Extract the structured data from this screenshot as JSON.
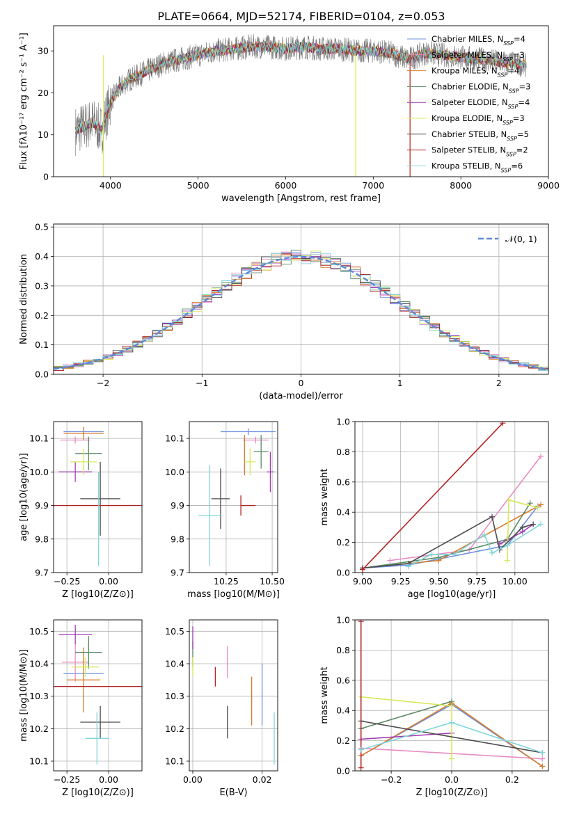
{
  "figure_title": "PLATE=0664, MJD=52174, FIBERID=0104, z=0.053",
  "colors": {
    "chabrier_miles": "#6b8fe0",
    "salpeter_miles": "#e88bc4",
    "kroupa_miles": "#d97b2a",
    "chabrier_elodie": "#5a8a64",
    "salpeter_elodie": "#a03cb4",
    "kroupa_elodie": "#d8e85a",
    "chabrier_stelib": "#4a4a4a",
    "salpeter_stelib": "#b22222",
    "kroupa_stelib": "#7fd6dc",
    "normal_curve": "#5b88d6"
  },
  "chart_data": [
    {
      "type": "line",
      "id": "spectrum",
      "title": "PLATE=0664, MJD=52174, FIBERID=0104, z=0.053",
      "xlabel": "wavelength [Angstrom, rest frame]",
      "ylabel": "Flux [fλ10⁻¹⁷ erg cm⁻² s⁻¹ A⁻¹]",
      "xlim": [
        3350,
        9000
      ],
      "ylim": [
        0,
        36
      ],
      "xticks": [
        4000,
        5000,
        6000,
        7000,
        8000,
        9000
      ],
      "yticks": [
        0,
        10,
        20,
        30
      ],
      "grid": false,
      "legend_position": "top-right",
      "data_continuum": {
        "x": [
          3600,
          3700,
          3800,
          3900,
          4000,
          4100,
          4200,
          4300,
          4400,
          4500,
          4600,
          4700,
          4800,
          4900,
          5000,
          5200,
          5400,
          5600,
          5800,
          6000,
          6200,
          6400,
          6600,
          6800,
          7000,
          7200,
          7400,
          7600,
          7800,
          8000,
          8200,
          8400,
          8600,
          8750
        ],
        "y": [
          11,
          12,
          13,
          11,
          18,
          21,
          23,
          24,
          25,
          26,
          27,
          27.5,
          28,
          28.5,
          29,
          30,
          30.5,
          31,
          31,
          30.5,
          31,
          30.5,
          30.5,
          30,
          30,
          29.5,
          28,
          29.5,
          29,
          28.5,
          28,
          27.5,
          27,
          26.5
        ]
      },
      "series": [
        {
          "name": "Chabrier MILES, N_SSP=4",
          "color_key": "chabrier_miles"
        },
        {
          "name": "Salpeter MILES, N_SSP=3",
          "color_key": "salpeter_miles"
        },
        {
          "name": "Kroupa MILES, N_SSP=4",
          "color_key": "kroupa_miles"
        },
        {
          "name": "Chabrier ELODIE, N_SSP=3",
          "color_key": "chabrier_elodie"
        },
        {
          "name": "Salpeter ELODIE, N_SSP=4",
          "color_key": "salpeter_elodie"
        },
        {
          "name": "Kroupa ELODIE, N_SSP=3",
          "color_key": "kroupa_elodie"
        },
        {
          "name": "Chabrier STELIB, N_SSP=5",
          "color_key": "chabrier_stelib"
        },
        {
          "name": "Salpeter STELIB, N_SSP=2",
          "color_key": "salpeter_stelib"
        },
        {
          "name": "Kroupa STELIB, N_SSP=6",
          "color_key": "kroupa_stelib"
        }
      ]
    },
    {
      "type": "area",
      "id": "residuals",
      "xlabel": "(data-model)/error",
      "ylabel": "Normed distribution",
      "xlim": [
        -2.5,
        2.5
      ],
      "ylim": [
        0,
        0.51
      ],
      "xticks": [
        -2,
        -1,
        0,
        1,
        2
      ],
      "yticks": [
        0.0,
        0.1,
        0.2,
        0.3,
        0.4,
        0.5
      ],
      "grid": true,
      "legend_position": "top-right",
      "normal_label": "𝒩(0, 1)"
    },
    {
      "type": "scatter",
      "id": "age_vs_Z",
      "xlabel": "Z [log10(Z/Z⊙)]",
      "ylabel": "age  [log10(age/yr)]",
      "xlim": [
        -0.33,
        0.2
      ],
      "ylim": [
        9.7,
        10.15
      ],
      "xticks": [
        -0.25,
        0.0
      ],
      "yticks": [
        9.7,
        9.8,
        9.9,
        10.0,
        10.1
      ],
      "grid": true,
      "points": [
        {
          "color_key": "chabrier_miles",
          "x": -0.15,
          "y": 10.12,
          "xerr": 0.12,
          "yerr": 0.01
        },
        {
          "color_key": "salpeter_miles",
          "x": -0.2,
          "y": 10.095,
          "xerr": 0.09,
          "yerr": 0.01
        },
        {
          "color_key": "kroupa_miles",
          "x": -0.15,
          "y": 10.115,
          "xerr": 0.12,
          "yerr": 0.02
        },
        {
          "color_key": "chabrier_elodie",
          "x": -0.12,
          "y": 10.055,
          "xerr": 0.08,
          "yerr": 0.05
        },
        {
          "color_key": "salpeter_elodie",
          "x": -0.2,
          "y": 10.0,
          "xerr": 0.1,
          "yerr": 0.03
        },
        {
          "color_key": "kroupa_elodie",
          "x": -0.15,
          "y": 10.03,
          "xerr": 0.08,
          "yerr": 0.04
        },
        {
          "color_key": "chabrier_stelib",
          "x": -0.05,
          "y": 9.92,
          "xerr": 0.12,
          "yerr": 0.11
        },
        {
          "color_key": "salpeter_stelib",
          "x": -0.1,
          "y": 9.9,
          "xerr": 0.3,
          "yerr": 0.0
        },
        {
          "color_key": "kroupa_stelib",
          "x": -0.06,
          "y": 9.86,
          "xerr": 0.0,
          "yerr": 0.14
        }
      ]
    },
    {
      "type": "scatter",
      "id": "age_vs_mass",
      "xlabel": "mass [log10(M/M⊙)]",
      "xlim": [
        10.05,
        10.53
      ],
      "ylim": [
        9.7,
        10.15
      ],
      "xticks": [
        10.25,
        10.5
      ],
      "yticks": [
        9.7,
        9.8,
        9.9,
        10.0,
        10.1
      ],
      "grid": true,
      "points": [
        {
          "color_key": "chabrier_miles",
          "x": 10.37,
          "y": 10.12,
          "xerr": 0.15,
          "yerr": 0.01
        },
        {
          "color_key": "salpeter_miles",
          "x": 10.41,
          "y": 10.095,
          "xerr": 0.07,
          "yerr": 0.01
        },
        {
          "color_key": "kroupa_miles",
          "x": 10.35,
          "y": 10.05,
          "xerr": 0.0,
          "yerr": 0.06
        },
        {
          "color_key": "chabrier_elodie",
          "x": 10.44,
          "y": 10.06,
          "xerr": 0.04,
          "yerr": 0.05
        },
        {
          "color_key": "salpeter_elodie",
          "x": 10.49,
          "y": 10.0,
          "xerr": 0.02,
          "yerr": 0.06
        },
        {
          "color_key": "kroupa_elodie",
          "x": 10.38,
          "y": 10.03,
          "xerr": 0.03,
          "yerr": 0.04
        },
        {
          "color_key": "chabrier_stelib",
          "x": 10.22,
          "y": 9.92,
          "xerr": 0.05,
          "yerr": 0.09
        },
        {
          "color_key": "salpeter_stelib",
          "x": 10.33,
          "y": 9.9,
          "xerr": 0.0,
          "yerr": 0.03
        },
        {
          "color_key": "salpeter_stelib",
          "x": 10.37,
          "y": 9.9,
          "xerr": 0.04,
          "yerr": 0.0
        },
        {
          "color_key": "kroupa_stelib",
          "x": 10.16,
          "y": 9.87,
          "xerr": 0.06,
          "yerr": 0.15
        }
      ]
    },
    {
      "type": "line",
      "id": "massweight_vs_age",
      "xlabel": "age  [log10(age/yr)]",
      "ylabel": "mass weight",
      "xlim": [
        8.95,
        10.22
      ],
      "ylim": [
        0,
        1.0
      ],
      "xticks": [
        9.0,
        9.25,
        9.5,
        9.75,
        10.0
      ],
      "yticks": [
        0.0,
        0.2,
        0.4,
        0.6,
        0.8,
        1.0
      ],
      "grid": true,
      "series": [
        {
          "color_key": "chabrier_miles",
          "x": [
            9.0,
            9.3,
            9.95,
            10.15
          ],
          "y": [
            0.03,
            0.05,
            0.18,
            0.44
          ]
        },
        {
          "color_key": "salpeter_miles",
          "x": [
            9.18,
            9.7,
            10.17
          ],
          "y": [
            0.08,
            0.15,
            0.77
          ]
        },
        {
          "color_key": "kroupa_miles",
          "x": [
            9.0,
            9.5,
            10.17
          ],
          "y": [
            0.03,
            0.08,
            0.45
          ]
        },
        {
          "color_key": "chabrier_elodie",
          "x": [
            9.0,
            9.5,
            9.95,
            10.1
          ],
          "y": [
            0.03,
            0.1,
            0.22,
            0.46
          ]
        },
        {
          "color_key": "salpeter_elodie",
          "x": [
            9.9,
            10.05,
            10.12
          ],
          "y": [
            0.19,
            0.27,
            0.32
          ]
        },
        {
          "color_key": "kroupa_elodie",
          "x": [
            9.95,
            9.96,
            10.15
          ],
          "y": [
            0.08,
            0.48,
            0.43
          ]
        },
        {
          "color_key": "chabrier_stelib",
          "x": [
            9.0,
            9.3,
            9.85,
            9.9,
            10.05,
            10.12
          ],
          "y": [
            0.03,
            0.06,
            0.37,
            0.15,
            0.3,
            0.32
          ]
        },
        {
          "color_key": "salpeter_stelib",
          "x": [
            9.0,
            9.92
          ],
          "y": [
            0.02,
            0.99
          ]
        },
        {
          "color_key": "kroupa_stelib",
          "x": [
            9.3,
            9.45,
            9.6,
            9.8,
            9.85,
            9.95,
            10.17
          ],
          "y": [
            0.04,
            0.12,
            0.12,
            0.25,
            0.13,
            0.18,
            0.32
          ]
        }
      ]
    },
    {
      "type": "scatter",
      "id": "mass_vs_Z",
      "xlabel": "Z [log10(Z/Z⊙)]",
      "ylabel": "mass [log10(M/M⊙)]",
      "xlim": [
        -0.33,
        0.2
      ],
      "ylim": [
        10.07,
        10.535
      ],
      "xticks": [
        -0.25,
        0.0
      ],
      "yticks": [
        10.1,
        10.2,
        10.3,
        10.4,
        10.5
      ],
      "grid": true,
      "points": [
        {
          "color_key": "chabrier_miles",
          "x": -0.15,
          "y": 10.37,
          "xerr": 0.12,
          "yerr": 0.0
        },
        {
          "color_key": "salpeter_miles",
          "x": -0.2,
          "y": 10.405,
          "xerr": 0.08,
          "yerr": 0.06
        },
        {
          "color_key": "kroupa_miles",
          "x": -0.15,
          "y": 10.35,
          "xerr": 0.1,
          "yerr": 0.1
        },
        {
          "color_key": "chabrier_elodie",
          "x": -0.12,
          "y": 10.435,
          "xerr": 0.08,
          "yerr": 0.05
        },
        {
          "color_key": "salpeter_elodie",
          "x": -0.2,
          "y": 10.49,
          "xerr": 0.1,
          "yerr": 0.03
        },
        {
          "color_key": "kroupa_elodie",
          "x": -0.14,
          "y": 10.39,
          "xerr": 0.08,
          "yerr": 0.03
        },
        {
          "color_key": "chabrier_stelib",
          "x": -0.05,
          "y": 10.22,
          "xerr": 0.12,
          "yerr": 0.05
        },
        {
          "color_key": "salpeter_stelib",
          "x": -0.1,
          "y": 10.33,
          "xerr": 0.3,
          "yerr": 0.0
        },
        {
          "color_key": "kroupa_stelib",
          "x": -0.07,
          "y": 10.17,
          "xerr": 0.07,
          "yerr": 0.08
        }
      ]
    },
    {
      "type": "scatter",
      "id": "mass_vs_ebv",
      "xlabel": "E(B-V)",
      "xlim": [
        -0.001,
        0.0245
      ],
      "ylim": [
        10.07,
        10.535
      ],
      "xticks": [
        0.0,
        0.02
      ],
      "yticks": [
        10.1,
        10.2,
        10.3,
        10.4,
        10.5
      ],
      "grid": true,
      "points": [
        {
          "color_key": "chabrier_miles",
          "x": 0.02,
          "y": 10.305,
          "xerr": 0.0,
          "yerr": 0.095
        },
        {
          "color_key": "salpeter_miles",
          "x": 0.01,
          "y": 10.405,
          "xerr": 0.0,
          "yerr": 0.05
        },
        {
          "color_key": "kroupa_miles",
          "x": 0.017,
          "y": 10.285,
          "xerr": 0.0,
          "yerr": 0.075
        },
        {
          "color_key": "chabrier_elodie",
          "x": 0.0,
          "y": 10.43,
          "xerr": 0.0,
          "yerr": 0.04
        },
        {
          "color_key": "salpeter_elodie",
          "x": 0.0,
          "y": 10.48,
          "xerr": 0.0,
          "yerr": 0.035
        },
        {
          "color_key": "kroupa_elodie",
          "x": 0.0,
          "y": 10.39,
          "xerr": 0.0,
          "yerr": 0.03
        },
        {
          "color_key": "chabrier_stelib",
          "x": 0.01,
          "y": 10.22,
          "xerr": 0.0,
          "yerr": 0.05
        },
        {
          "color_key": "salpeter_stelib",
          "x": 0.0065,
          "y": 10.36,
          "xerr": 0.0,
          "yerr": 0.03
        },
        {
          "color_key": "kroupa_stelib",
          "x": 0.0235,
          "y": 10.17,
          "xerr": 0.0,
          "yerr": 0.08
        }
      ]
    },
    {
      "type": "line",
      "id": "massweight_vs_Z",
      "xlabel": "Z [log10(Z/Z⊙)]",
      "ylabel": "mass weight",
      "xlim": [
        -0.32,
        0.32
      ],
      "ylim": [
        0,
        1.0
      ],
      "xticks": [
        -0.2,
        0.0,
        0.2
      ],
      "yticks": [
        0.0,
        0.2,
        0.4,
        0.6,
        0.8,
        1.0
      ],
      "grid": true,
      "series": [
        {
          "color_key": "chabrier_miles",
          "x": [
            -0.3,
            0.0,
            0.3
          ],
          "y": [
            0.1,
            0.44,
            0.03
          ]
        },
        {
          "color_key": "salpeter_miles",
          "x": [
            -0.3,
            0.3
          ],
          "y": [
            0.15,
            0.08
          ]
        },
        {
          "color_key": "kroupa_miles",
          "x": [
            -0.3,
            0.0,
            0.3
          ],
          "y": [
            0.1,
            0.45,
            0.03
          ]
        },
        {
          "color_key": "chabrier_elodie",
          "x": [
            -0.3,
            0.0
          ],
          "y": [
            0.28,
            0.46
          ]
        },
        {
          "color_key": "salpeter_elodie",
          "x": [
            -0.3,
            0.0
          ],
          "y": [
            0.21,
            0.25
          ]
        },
        {
          "color_key": "kroupa_elodie",
          "x": [
            -0.3,
            0.0,
            0.0
          ],
          "y": [
            0.49,
            0.43,
            0.08
          ]
        },
        {
          "color_key": "chabrier_stelib",
          "x": [
            -0.3,
            0.3
          ],
          "y": [
            0.33,
            0.12
          ]
        },
        {
          "color_key": "salpeter_stelib",
          "x": [
            -0.3,
            -0.3
          ],
          "y": [
            0.02,
            0.99
          ]
        },
        {
          "color_key": "kroupa_stelib",
          "x": [
            -0.3,
            0.0,
            0.3
          ],
          "y": [
            0.14,
            0.32,
            0.12
          ]
        }
      ]
    }
  ]
}
